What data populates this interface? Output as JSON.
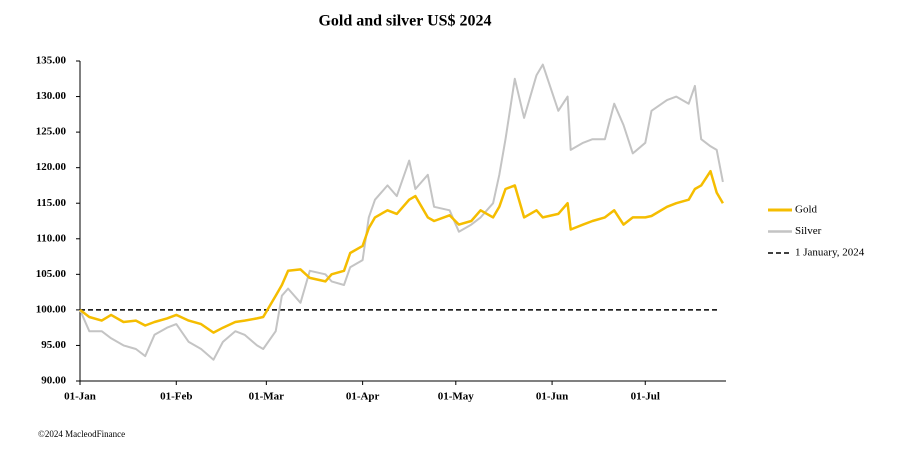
{
  "chart_data": {
    "type": "line",
    "title": "Gold and silver  US$ 2024",
    "footnote": "©2024 MacleodFinance",
    "x": [
      0,
      3,
      7,
      10,
      14,
      18,
      21,
      24,
      28,
      31,
      35,
      39,
      43,
      46,
      50,
      53,
      57,
      59,
      63,
      65,
      67,
      71,
      74,
      79,
      81,
      85,
      87,
      91,
      93,
      95,
      99,
      102,
      106,
      108,
      112,
      114,
      119,
      122,
      126,
      129,
      133,
      135,
      137,
      140,
      143,
      147,
      149,
      154,
      157,
      158,
      162,
      165,
      169,
      172,
      175,
      178,
      182,
      184,
      189,
      192,
      196,
      198,
      200,
      203,
      205,
      207
    ],
    "series": [
      {
        "name": "Gold",
        "color": "#f5bd00",
        "width": 2.5,
        "values": [
          100,
          99,
          98.5,
          99.3,
          98.3,
          98.5,
          97.8,
          98.3,
          98.8,
          99.3,
          98.5,
          98,
          96.8,
          97.5,
          98.3,
          98.5,
          98.8,
          99,
          102,
          103.5,
          105.5,
          105.7,
          104.5,
          104,
          105,
          105.5,
          108,
          109,
          111.5,
          113,
          114,
          113.5,
          115.5,
          116,
          113,
          112.5,
          113.3,
          112,
          112.5,
          114,
          113,
          114.5,
          117,
          117.5,
          113,
          114,
          113,
          113.5,
          115,
          111.3,
          112,
          112.5,
          113,
          114,
          112,
          113,
          113,
          113.2,
          114.5,
          115,
          115.5,
          117,
          117.5,
          119.5,
          116.5,
          115
        ]
      },
      {
        "name": "Silver",
        "color": "#c4c4c4",
        "width": 2,
        "values": [
          100,
          97,
          97,
          96,
          95,
          94.5,
          93.5,
          96.5,
          97.5,
          98,
          95.5,
          94.5,
          93,
          95.5,
          97,
          96.5,
          95,
          94.5,
          97,
          102,
          103,
          101,
          105.5,
          105,
          104,
          103.5,
          106,
          107,
          113,
          115.5,
          117.5,
          116,
          121,
          117,
          119,
          114.5,
          114,
          111,
          112,
          113,
          115,
          119,
          124,
          132.5,
          127,
          133,
          134.5,
          128,
          130,
          122.5,
          123.5,
          124,
          124,
          129,
          126,
          122,
          123.5,
          128,
          129.5,
          130,
          129,
          131.5,
          124,
          123,
          122.5,
          118
        ]
      }
    ],
    "reference_line": {
      "name": "1 January, 2024",
      "value": 100,
      "color": "#000000"
    },
    "xlim": [
      0,
      208
    ],
    "xticks": [
      {
        "value": 0,
        "label": "01-Jan"
      },
      {
        "value": 31,
        "label": "01-Feb"
      },
      {
        "value": 60,
        "label": "01-Mar"
      },
      {
        "value": 91,
        "label": "01-Apr"
      },
      {
        "value": 121,
        "label": "01-May"
      },
      {
        "value": 152,
        "label": "01-Jun"
      },
      {
        "value": 182,
        "label": "01-Jul"
      }
    ],
    "ylim": [
      90,
      135
    ],
    "yticks": [
      {
        "value": 90,
        "label": "90.00"
      },
      {
        "value": 95,
        "label": "95.00"
      },
      {
        "value": 100,
        "label": "100.00"
      },
      {
        "value": 105,
        "label": "105.00"
      },
      {
        "value": 110,
        "label": "110.00"
      },
      {
        "value": 115,
        "label": "115.00"
      },
      {
        "value": 120,
        "label": "120.00"
      },
      {
        "value": 125,
        "label": "125.00"
      },
      {
        "value": 130,
        "label": "130.00"
      },
      {
        "value": 135,
        "label": "135.00"
      }
    ],
    "grid": false,
    "legend": "right"
  }
}
